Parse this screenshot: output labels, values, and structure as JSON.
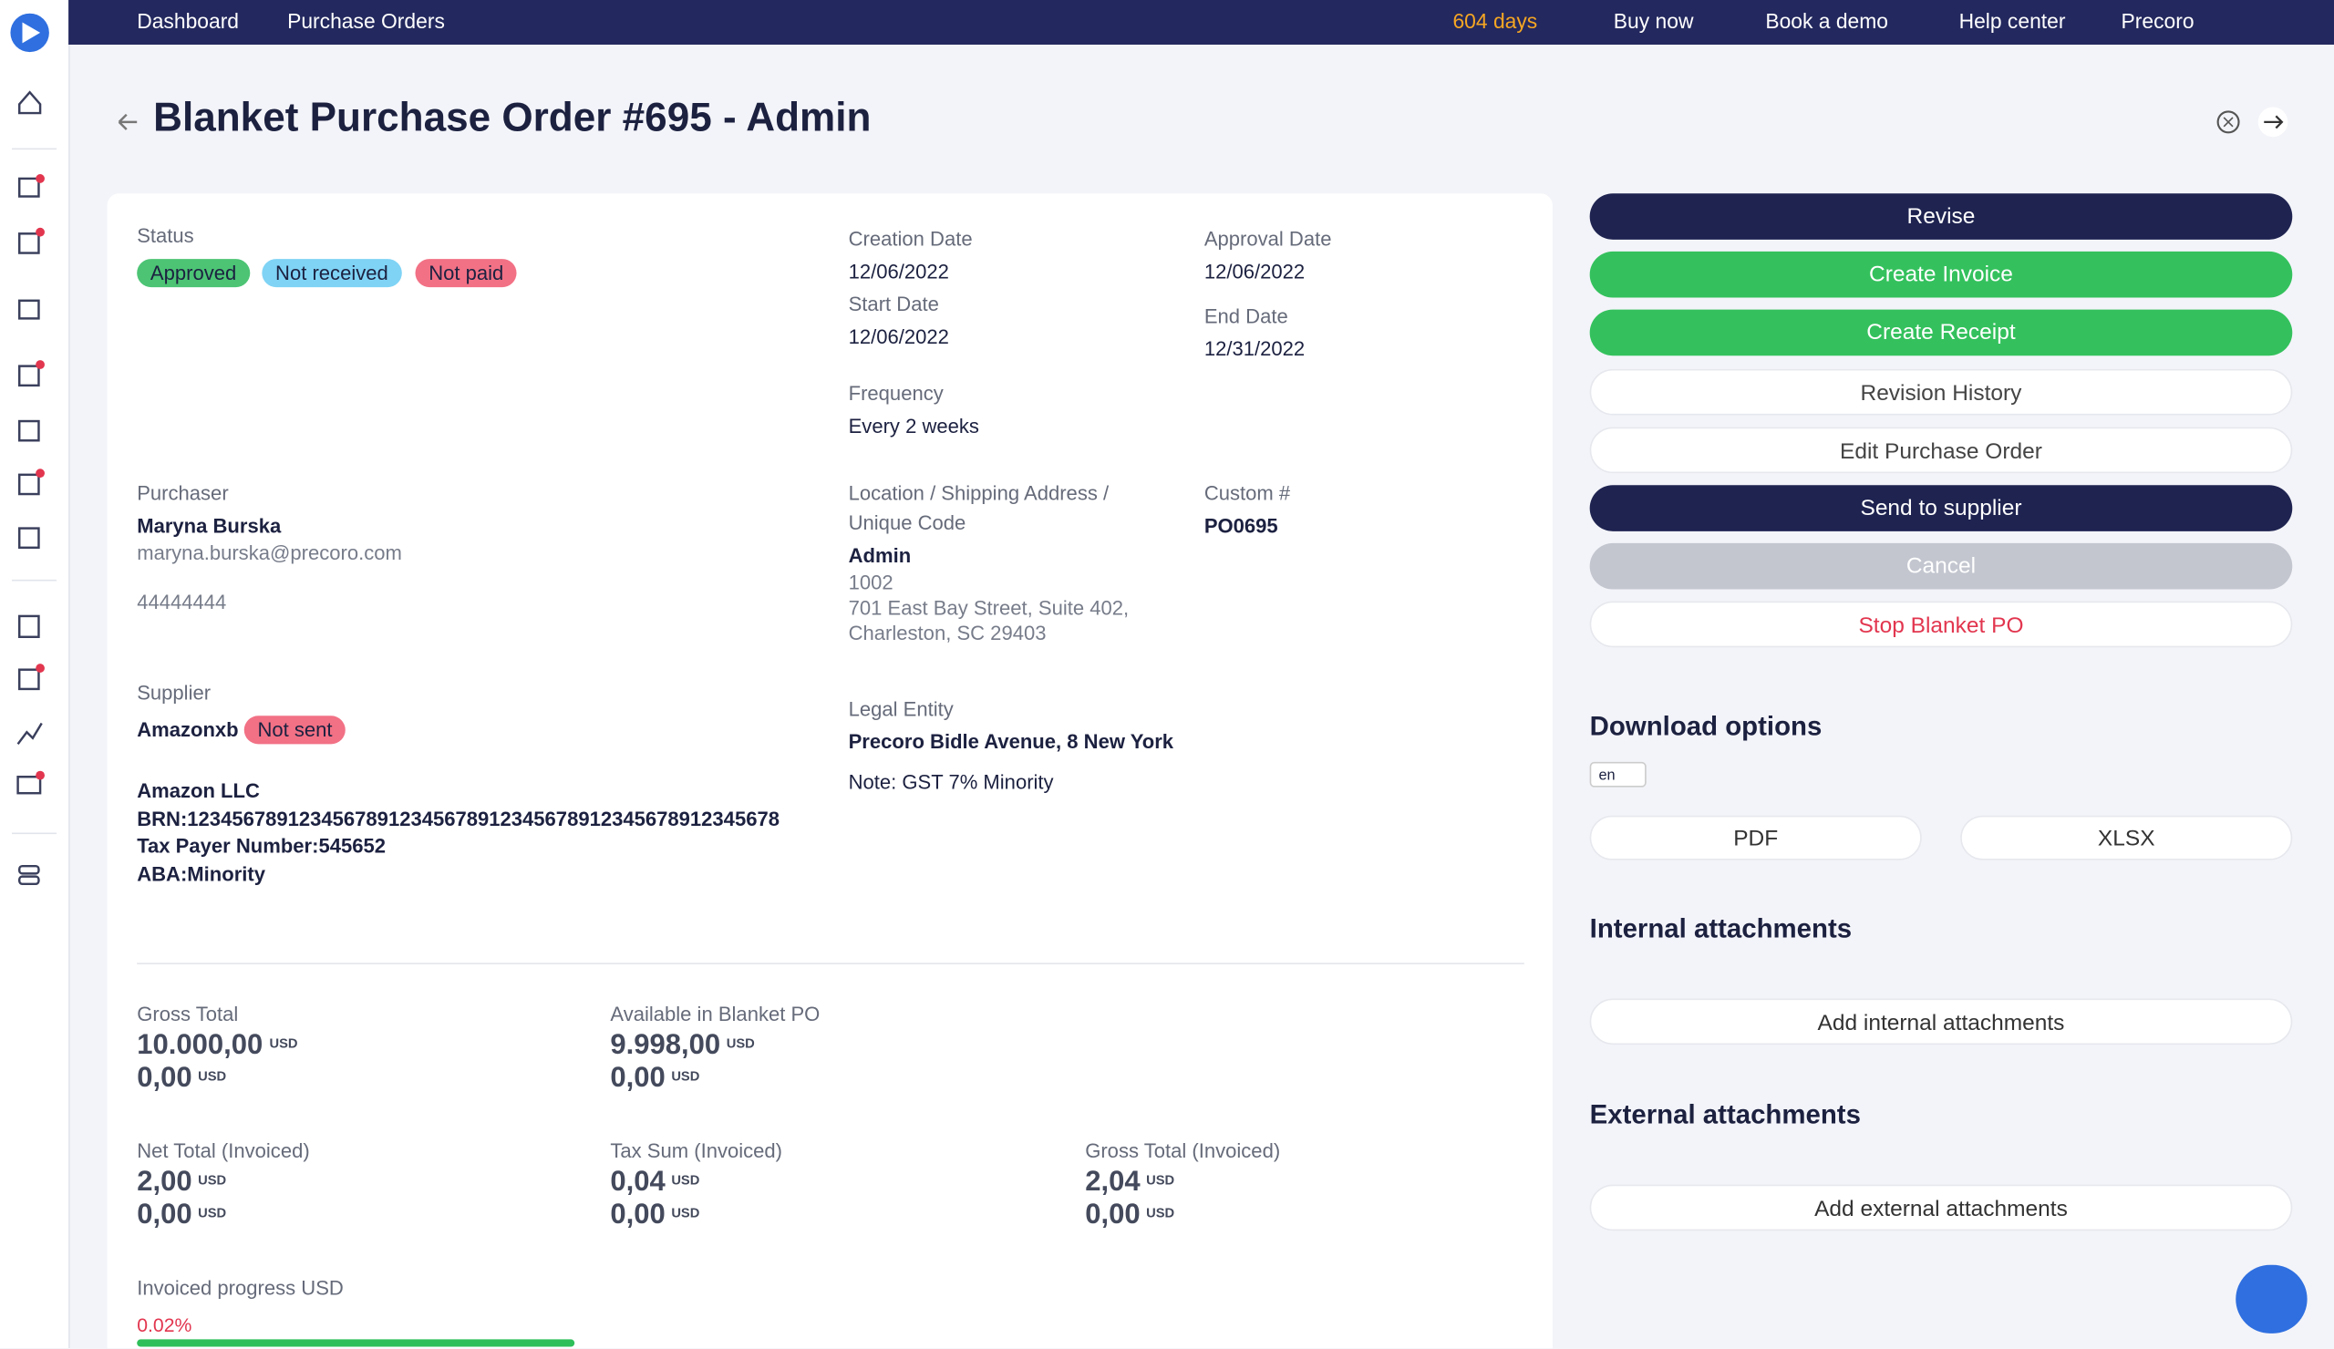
{
  "header": {
    "breadcrumbs": [
      "Dashboard",
      "Purchase Orders"
    ],
    "trial": "604 days",
    "links": [
      "Buy now",
      "Book a demo",
      "Help center"
    ],
    "company": "Precoro"
  },
  "title": "Blanket Purchase Order #695 - Admin",
  "status": {
    "label": "Status",
    "badges": [
      "Approved",
      "Not received",
      "Not paid"
    ]
  },
  "fields": [
    {
      "label": "Creation Date",
      "lines": [
        "12/06/2022"
      ]
    },
    {
      "label": "Start Date",
      "lines": [
        "12/06/2022"
      ]
    },
    {
      "label": "Frequency",
      "lines": [
        "Every 2 weeks"
      ]
    },
    {
      "label": "Approval Date",
      "lines": [
        "12/06/2022"
      ]
    },
    {
      "label": "End Date",
      "lines": [
        "12/31/2022"
      ]
    },
    {
      "label": "Purchaser",
      "name": "Maryna Burska",
      "lines": [
        "maryna.burska@precoro.com",
        "44444444"
      ]
    },
    {
      "label": "Location / Shipping Address / Unique Code",
      "name": "Admin",
      "lines": [
        "1002",
        "701 East Bay Street, Suite 402,",
        "Charleston, SC 29403"
      ]
    },
    {
      "label": "Custom #",
      "name": "PO0695",
      "lines": []
    },
    {
      "label": "Legal Entity",
      "name": "Precoro Bidle Avenue, 8 New York",
      "lines": [
        "Note: GST 7% Minority"
      ]
    }
  ],
  "supplier": {
    "label": "Supplier",
    "name": "Amazonxb",
    "badge": "Not sent",
    "details": [
      "Amazon LLC",
      "BRN:12345678912345678912345678912345678912345678912345678",
      "Tax Payer Number:545652",
      "ABA:Minority"
    ]
  },
  "totals": [
    {
      "label": "Gross Total",
      "amounts": [
        "10.000,00",
        "0,00"
      ],
      "currency": "USD"
    },
    {
      "label": "Available in Blanket PO",
      "amounts": [
        "9.998,00",
        "0,00"
      ],
      "currency": "USD"
    },
    {
      "label": "Net Total (Invoiced)",
      "amounts": [
        "2,00",
        "0,00"
      ],
      "currency": "USD"
    },
    {
      "label": "Tax Sum (Invoiced)",
      "amounts": [
        "0,04",
        "0,00"
      ],
      "currency": "USD"
    },
    {
      "label": "Gross Total (Invoiced)",
      "amounts": [
        "2,04",
        "0,00"
      ],
      "currency": "USD"
    }
  ],
  "progress": {
    "label": "Invoiced progress USD",
    "value": "0.02%"
  },
  "actions": [
    "Revise",
    "Create Invoice",
    "Create Receipt",
    "Revision History",
    "Edit Purchase Order",
    "Send to supplier",
    "Cancel",
    "Stop Blanket PO"
  ],
  "download": {
    "title": "Download options",
    "language": "en",
    "formats": [
      "PDF",
      "XLSX"
    ]
  },
  "internal": {
    "title": "Internal attachments",
    "button": "Add internal attachments"
  },
  "external": {
    "title": "External attachments",
    "button": "Add external attachments"
  }
}
